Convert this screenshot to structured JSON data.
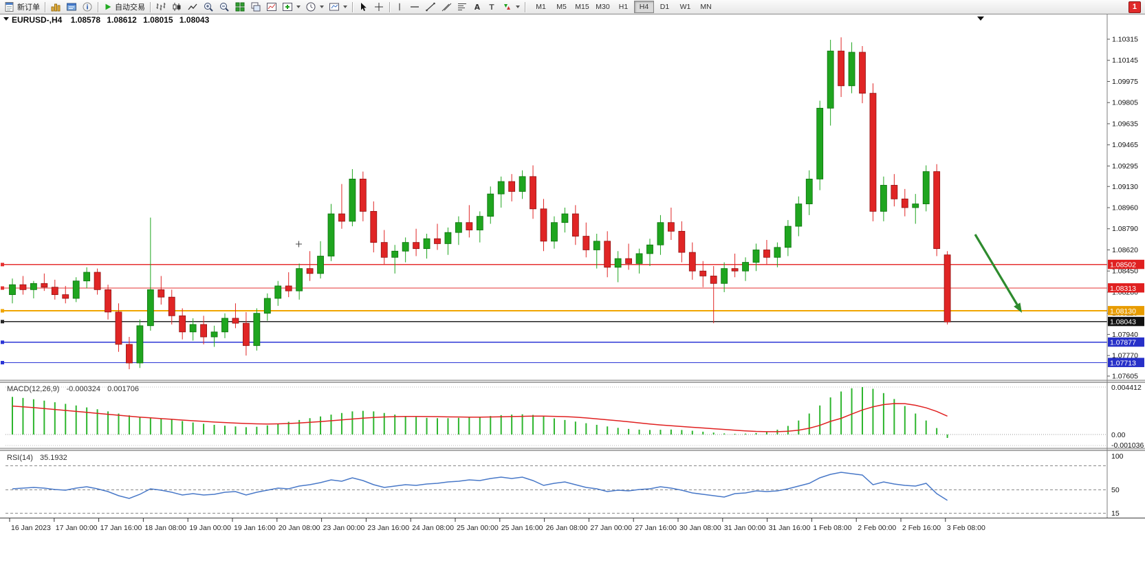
{
  "toolbar": {
    "new_order": "新订单",
    "auto_trading": "自动交易",
    "timeframes": [
      "M1",
      "M5",
      "M15",
      "M30",
      "H1",
      "H4",
      "D1",
      "W1",
      "MN"
    ],
    "active_timeframe": "H4",
    "badge": "1",
    "icon_names": [
      "new-order-icon",
      "charts-icon",
      "profiles-icon",
      "info-icon",
      "autotrade-play-icon",
      "bar-chart-icon",
      "candle-chart-icon",
      "line-chart-icon",
      "zoom-in-icon",
      "zoom-out-icon",
      "tile-windows-icon",
      "cascade-windows-icon",
      "indicator-list-icon",
      "add-indicator-icon",
      "period-clock-icon",
      "templates-icon",
      "cursor-icon",
      "crosshair-icon",
      "vertical-line-icon",
      "horizontal-line-icon",
      "trendline-icon",
      "channel-icon",
      "fibonacci-icon",
      "text-icon",
      "label-icon",
      "arrows-icon"
    ]
  },
  "chart": {
    "title": "EURUSD-,H4",
    "ohlc": {
      "open": "1.08578",
      "high": "1.08612",
      "low": "1.08015",
      "close": "1.08043"
    },
    "colors": {
      "up": "#1fa51f",
      "up_border": "#0b700b",
      "down": "#e02525",
      "down_border": "#8f1111",
      "macd_hist": "#2db52d",
      "macd_signal": "#e02020",
      "rsi": "#4878c8",
      "arrow": "#2e8b2e"
    },
    "price_axis": {
      "labels": [
        "1.10315",
        "1.10145",
        "1.09975",
        "1.09805",
        "1.09635",
        "1.09465",
        "1.09295",
        "1.09130",
        "1.08960",
        "1.08790",
        "1.08620",
        "1.08450",
        "1.08280",
        "1.08110",
        "1.07940",
        "1.07770",
        "1.07605"
      ]
    },
    "hlines": [
      {
        "name": "resistance-line-1",
        "price": 1.08502,
        "label": "1.08502",
        "color": "#e53030",
        "box": "#e02020",
        "width": 1.3
      },
      {
        "name": "resistance-line-2",
        "price": 1.08313,
        "label": "1.08313",
        "color": "#e53030",
        "box": "#e02020",
        "width": 1.3
      },
      {
        "name": "pivot-line",
        "price": 1.0813,
        "label": "1.08130",
        "color": "#f0a500",
        "box": "#e89c00",
        "width": 2
      },
      {
        "name": "current-price-line",
        "price": 1.08043,
        "label": "1.08043",
        "color": "#262626",
        "box": "#111111",
        "width": 1.3
      },
      {
        "name": "support-line-1",
        "price": 1.07877,
        "label": "1.07877",
        "color": "#2b35d6",
        "box": "#2730c8",
        "width": 1.3
      },
      {
        "name": "support-line-2",
        "price": 1.07713,
        "label": "1.07713",
        "color": "#2b35d6",
        "box": "#2730c8",
        "width": 1.3
      }
    ],
    "time_axis": {
      "labels": [
        "16 Jan 2023",
        "17 Jan 00:00",
        "17 Jan 16:00",
        "18 Jan 08:00",
        "19 Jan 00:00",
        "19 Jan 16:00",
        "20 Jan 08:00",
        "23 Jan 00:00",
        "23 Jan 16:00",
        "24 Jan 08:00",
        "25 Jan 00:00",
        "25 Jan 16:00",
        "26 Jan 08:00",
        "27 Jan 00:00",
        "27 Jan 16:00",
        "30 Jan 08:00",
        "31 Jan 00:00",
        "31 Jan 16:00",
        "1 Feb 08:00",
        "2 Feb 00:00",
        "2 Feb 16:00",
        "3 Feb 08:00"
      ]
    }
  },
  "chart_data": {
    "type": "candlestick",
    "symbol": "EURUSD-",
    "period": "H4",
    "title": "EURUSD-,H4 1.08578 1.08612 1.08015 1.08043",
    "price_range": [
      1.07605,
      1.10315
    ],
    "candles": [
      [
        1.0826,
        1.0839,
        1.0819,
        1.0834
      ],
      [
        1.0834,
        1.0841,
        1.0826,
        1.083
      ],
      [
        1.083,
        1.0837,
        1.0823,
        1.0835
      ],
      [
        1.0835,
        1.0843,
        1.0829,
        1.0832
      ],
      [
        1.0832,
        1.0838,
        1.0822,
        1.0826
      ],
      [
        1.0826,
        1.0833,
        1.0819,
        1.0823
      ],
      [
        1.0823,
        1.084,
        1.082,
        1.0837
      ],
      [
        1.0837,
        1.0848,
        1.0831,
        1.0844
      ],
      [
        1.0844,
        1.0847,
        1.0826,
        1.083
      ],
      [
        1.083,
        1.0834,
        1.0806,
        1.0812
      ],
      [
        1.0812,
        1.0819,
        1.078,
        1.0786
      ],
      [
        1.0786,
        1.0792,
        1.0766,
        1.0771
      ],
      [
        1.0771,
        1.0806,
        1.0767,
        1.0801
      ],
      [
        1.0801,
        1.0888,
        1.0797,
        1.083
      ],
      [
        1.083,
        1.0841,
        1.0818,
        1.0824
      ],
      [
        1.0824,
        1.083,
        1.0802,
        1.0809
      ],
      [
        1.0809,
        1.0815,
        1.079,
        1.0796
      ],
      [
        1.0796,
        1.0807,
        1.0789,
        1.0802
      ],
      [
        1.0802,
        1.0809,
        1.0786,
        1.0792
      ],
      [
        1.0792,
        1.0801,
        1.0784,
        1.0796
      ],
      [
        1.0796,
        1.0811,
        1.0791,
        1.0807
      ],
      [
        1.0807,
        1.0819,
        1.0799,
        1.0803
      ],
      [
        1.0803,
        1.0812,
        1.0777,
        1.0785
      ],
      [
        1.0785,
        1.0815,
        1.0781,
        1.0811
      ],
      [
        1.0811,
        1.0827,
        1.0805,
        1.0823
      ],
      [
        1.0823,
        1.0837,
        1.0817,
        1.0833
      ],
      [
        1.0833,
        1.0844,
        1.0824,
        1.0829
      ],
      [
        1.0829,
        1.0851,
        1.0822,
        1.0847
      ],
      [
        1.0847,
        1.0861,
        1.0837,
        1.0843
      ],
      [
        1.0843,
        1.0869,
        1.0839,
        1.0857
      ],
      [
        1.0857,
        1.0899,
        1.0853,
        1.0891
      ],
      [
        1.0891,
        1.0915,
        1.0879,
        1.0885
      ],
      [
        1.0885,
        1.0927,
        1.0881,
        1.0919
      ],
      [
        1.0919,
        1.0925,
        1.0885,
        1.0893
      ],
      [
        1.0893,
        1.0901,
        1.086,
        1.0868
      ],
      [
        1.0868,
        1.0878,
        1.085,
        1.0856
      ],
      [
        1.0856,
        1.0866,
        1.0843,
        1.0861
      ],
      [
        1.0861,
        1.0872,
        1.0852,
        1.0868
      ],
      [
        1.0868,
        1.0879,
        1.0857,
        1.0863
      ],
      [
        1.0863,
        1.0875,
        1.0855,
        1.0871
      ],
      [
        1.0871,
        1.0883,
        1.0862,
        1.0867
      ],
      [
        1.0867,
        1.088,
        1.0858,
        1.0876
      ],
      [
        1.0876,
        1.0889,
        1.0866,
        1.0884
      ],
      [
        1.0884,
        1.0898,
        1.0872,
        1.0878
      ],
      [
        1.0878,
        1.0893,
        1.0868,
        1.0889
      ],
      [
        1.0889,
        1.0913,
        1.0883,
        1.0907
      ],
      [
        1.0907,
        1.0921,
        1.0896,
        1.0917
      ],
      [
        1.0917,
        1.0923,
        1.0901,
        1.0909
      ],
      [
        1.0909,
        1.0926,
        1.0903,
        1.0921
      ],
      [
        1.0921,
        1.093,
        1.0887,
        1.0895
      ],
      [
        1.0895,
        1.0903,
        1.0861,
        1.0869
      ],
      [
        1.0869,
        1.0889,
        1.0863,
        1.0884
      ],
      [
        1.0884,
        1.0896,
        1.0876,
        1.0891
      ],
      [
        1.0891,
        1.0898,
        1.0866,
        1.0873
      ],
      [
        1.0873,
        1.0884,
        1.0856,
        1.0862
      ],
      [
        1.0862,
        1.0875,
        1.0847,
        1.0869
      ],
      [
        1.0869,
        1.0877,
        1.084,
        1.0848
      ],
      [
        1.0848,
        1.0861,
        1.0836,
        1.0855
      ],
      [
        1.0855,
        1.0867,
        1.0846,
        1.0851
      ],
      [
        1.0851,
        1.0863,
        1.0843,
        1.0859
      ],
      [
        1.0859,
        1.0871,
        1.0849,
        1.0866
      ],
      [
        1.0866,
        1.089,
        1.0858,
        1.0884
      ],
      [
        1.0884,
        1.0896,
        1.087,
        1.0877
      ],
      [
        1.0877,
        1.0885,
        1.0852,
        1.086
      ],
      [
        1.086,
        1.0868,
        1.0838,
        1.0845
      ],
      [
        1.0845,
        1.0853,
        1.0832,
        1.0841
      ],
      [
        1.0841,
        1.0849,
        1.0803,
        1.0835
      ],
      [
        1.0835,
        1.0852,
        1.0828,
        1.0847
      ],
      [
        1.0847,
        1.0859,
        1.084,
        1.0845
      ],
      [
        1.0845,
        1.0856,
        1.0837,
        1.0852
      ],
      [
        1.0852,
        1.0867,
        1.0845,
        1.0862
      ],
      [
        1.0862,
        1.087,
        1.085,
        1.0856
      ],
      [
        1.0856,
        1.0868,
        1.0848,
        1.0864
      ],
      [
        1.0864,
        1.0886,
        1.0857,
        1.0881
      ],
      [
        1.0881,
        1.0905,
        1.0873,
        1.0899
      ],
      [
        1.0899,
        1.0926,
        1.089,
        1.0919
      ],
      [
        1.0919,
        1.0982,
        1.091,
        1.0976
      ],
      [
        1.0976,
        1.1031,
        1.0962,
        1.1022
      ],
      [
        1.1022,
        1.1033,
        1.0985,
        1.0994
      ],
      [
        1.0994,
        1.1029,
        1.0988,
        1.1021
      ],
      [
        1.1021,
        1.1026,
        1.098,
        1.0988
      ],
      [
        1.0988,
        1.0996,
        1.0885,
        1.0893
      ],
      [
        1.0893,
        1.0921,
        1.0885,
        1.0914
      ],
      [
        1.0914,
        1.0923,
        1.0897,
        1.0903
      ],
      [
        1.0903,
        1.0911,
        1.0889,
        1.0896
      ],
      [
        1.0896,
        1.0907,
        1.0883,
        1.0899
      ],
      [
        1.0899,
        1.093,
        1.0893,
        1.0925
      ],
      [
        1.0925,
        1.0931,
        1.0857,
        1.0863
      ],
      [
        1.0858,
        1.0861,
        1.0802,
        1.0804
      ]
    ],
    "macd": {
      "label": "MACD(12,26,9)",
      "main_value": "-0.000324",
      "signal_value": "0.001706",
      "axis": {
        "max": "0.004412",
        "zero": "0.00",
        "min": "-0.001036"
      },
      "histogram": [
        0.0035,
        0.0034,
        0.00328,
        0.00315,
        0.003,
        0.00285,
        0.0027,
        0.00252,
        0.00235,
        0.00215,
        0.00195,
        0.00178,
        0.00165,
        0.0016,
        0.0015,
        0.00138,
        0.00125,
        0.00112,
        0.001,
        0.0009,
        0.00082,
        0.00075,
        0.00068,
        0.00072,
        0.00085,
        0.001,
        0.00118,
        0.00135,
        0.00152,
        0.00168,
        0.00185,
        0.002,
        0.00215,
        0.0022,
        0.00215,
        0.002,
        0.00185,
        0.00172,
        0.00162,
        0.00155,
        0.00152,
        0.00152,
        0.00155,
        0.0016,
        0.00165,
        0.00172,
        0.0018,
        0.00185,
        0.00188,
        0.00182,
        0.00168,
        0.0015,
        0.00135,
        0.0012,
        0.00105,
        0.0009,
        0.00075,
        0.00062,
        0.00052,
        0.00045,
        0.00042,
        0.00044,
        0.00046,
        0.00042,
        0.00035,
        0.00026,
        0.00018,
        0.0001,
        6e-05,
        8e-05,
        0.00014,
        0.00022,
        0.00045,
        0.0008,
        0.0013,
        0.00195,
        0.0027,
        0.00345,
        0.004,
        0.0043,
        0.00441,
        0.00425,
        0.00385,
        0.0033,
        0.00265,
        0.00195,
        0.0013,
        0.0006,
        -0.00032
      ],
      "signal": [
        0.00265,
        0.00258,
        0.0025,
        0.00242,
        0.00233,
        0.00224,
        0.00215,
        0.00206,
        0.00197,
        0.00188,
        0.00179,
        0.0017,
        0.00162,
        0.00155,
        0.00148,
        0.00141,
        0.00134,
        0.00128,
        0.00122,
        0.00116,
        0.00111,
        0.00106,
        0.00102,
        0.00099,
        0.00098,
        0.00099,
        0.00102,
        0.00107,
        0.00113,
        0.0012,
        0.00128,
        0.00136,
        0.00144,
        0.00152,
        0.00158,
        0.00163,
        0.00166,
        0.00168,
        0.00168,
        0.00167,
        0.00166,
        0.00164,
        0.00163,
        0.00162,
        0.00162,
        0.00163,
        0.00165,
        0.00167,
        0.00169,
        0.00171,
        0.00171,
        0.00169,
        0.00166,
        0.00161,
        0.00154,
        0.00146,
        0.00137,
        0.00128,
        0.00118,
        0.00108,
        0.00098,
        0.00089,
        0.00081,
        0.00074,
        0.00067,
        0.00061,
        0.00054,
        0.00047,
        0.0004,
        0.00034,
        0.00029,
        0.00026,
        0.00026,
        0.0003,
        0.0004,
        0.00058,
        0.00085,
        0.00122,
        0.0015,
        0.0019,
        0.00228,
        0.00258,
        0.00278,
        0.00288,
        0.00287,
        0.00272,
        0.00248,
        0.00215,
        0.00171
      ]
    },
    "rsi": {
      "label": "RSI(14)",
      "value": "35.1932",
      "axis": [
        "100",
        "50",
        "15"
      ],
      "values": [
        52,
        53,
        54,
        53,
        51,
        50,
        53,
        55,
        52,
        48,
        42,
        38,
        44,
        52,
        50,
        47,
        43,
        45,
        43,
        44,
        47,
        48,
        43,
        47,
        50,
        53,
        52,
        56,
        58,
        61,
        65,
        63,
        68,
        64,
        58,
        54,
        56,
        58,
        57,
        59,
        60,
        62,
        63,
        65,
        64,
        67,
        69,
        67,
        69,
        64,
        57,
        60,
        62,
        58,
        54,
        52,
        48,
        50,
        49,
        51,
        52,
        55,
        53,
        50,
        46,
        44,
        42,
        40,
        45,
        46,
        49,
        48,
        49,
        52,
        56,
        60,
        68,
        73,
        76,
        74,
        72,
        58,
        62,
        59,
        57,
        56,
        60,
        45,
        35.19
      ]
    }
  }
}
